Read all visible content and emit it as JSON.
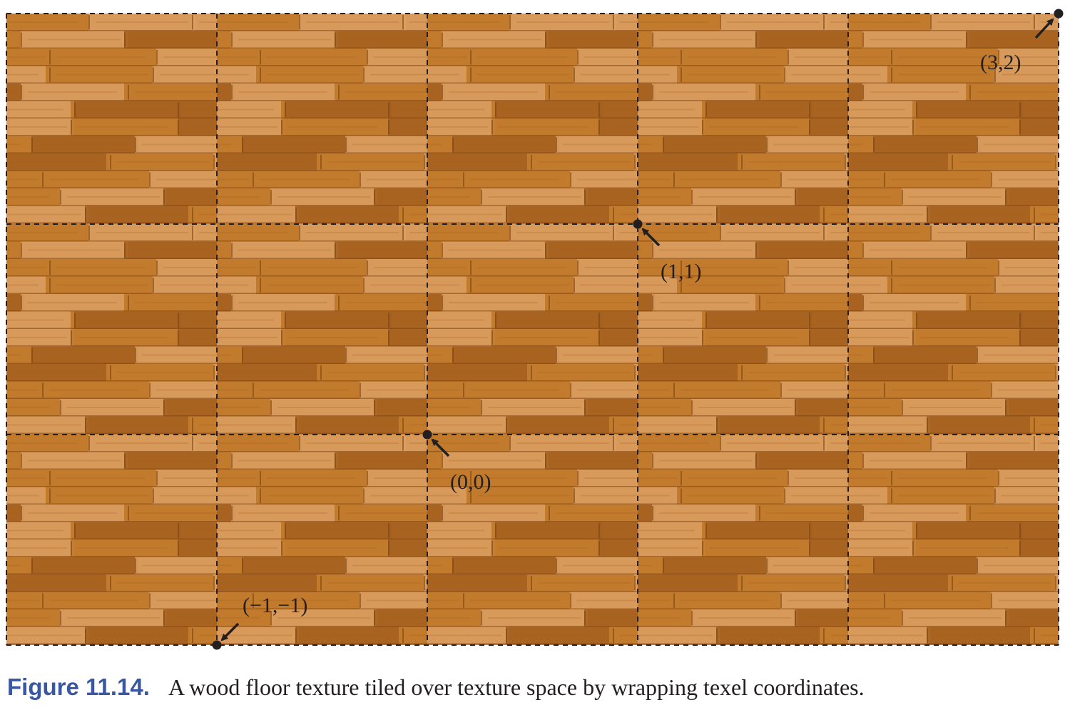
{
  "figure": {
    "grid": {
      "columns": 5,
      "rows": 3,
      "cell_origin_column": 2,
      "cell_origin_row_from_bottom": 1,
      "line_style": "dashed"
    },
    "texture": {
      "name": "wood floor",
      "colors": {
        "base": "#c27a2c",
        "dark": "#a35f1d",
        "light": "#dca063",
        "seam": "#7a4210",
        "grid_line": "#231f20"
      }
    },
    "points": [
      {
        "id": "p-neg1-neg1",
        "label": "(−1,−1)",
        "u": -1,
        "v": -1,
        "arrow": "from-upper-right"
      },
      {
        "id": "p-0-0",
        "label": "(0,0)",
        "u": 0,
        "v": 0,
        "arrow": "from-lower-right"
      },
      {
        "id": "p-1-1",
        "label": "(1,1)",
        "u": 1,
        "v": 1,
        "arrow": "from-lower-right"
      },
      {
        "id": "p-3-2",
        "label": "(3,2)",
        "u": 3,
        "v": 2,
        "arrow": "from-lower-left"
      }
    ]
  },
  "caption": {
    "label": "Figure 11.14.",
    "text": "A wood floor texture tiled over texture space by wrapping texel coordinates.",
    "label_color": "#3a57a3"
  }
}
